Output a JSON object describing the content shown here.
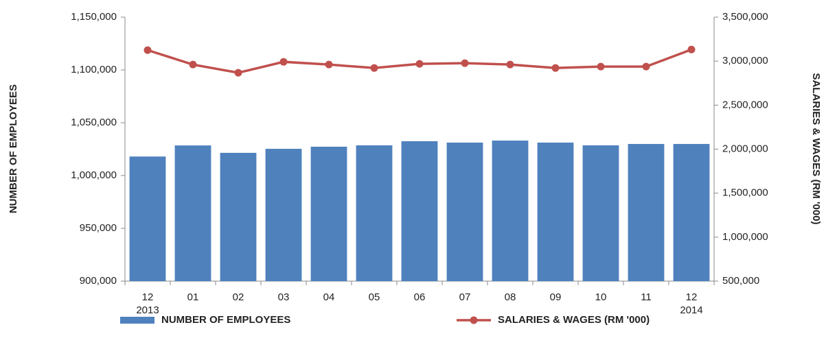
{
  "chart_data": {
    "type": "bar-line",
    "y_label": "NUMBER OF EMPLOYEES",
    "y2_label": "SALARIES & WAGES (RM  '000)",
    "categories": [
      "12\n2013",
      "01",
      "02",
      "03",
      "04",
      "05",
      "06",
      "07",
      "08",
      "09",
      "10",
      "11",
      "12\n2014"
    ],
    "series": [
      {
        "name": "NUMBER OF EMPLOYEES",
        "type": "bar",
        "color": "#4f81bd",
        "axis": "y",
        "values": [
          1018000,
          1028500,
          1021500,
          1025300,
          1027300,
          1028600,
          1032500,
          1031200,
          1033100,
          1031200,
          1028600,
          1029900,
          1029900
        ]
      },
      {
        "name": "SALARIES & WAGES (RM '000)",
        "type": "line",
        "color": "#c0504d",
        "axis": "y2",
        "values": [
          3125000,
          2961000,
          2868000,
          2992000,
          2961000,
          2922000,
          2969000,
          2977000,
          2961000,
          2922000,
          2938000,
          2938000,
          3132000
        ]
      }
    ],
    "ylim": [
      900000,
      1150000
    ],
    "yticks": [
      {
        "value": 900000,
        "label": "900,000"
      },
      {
        "value": 950000,
        "label": "950,000"
      },
      {
        "value": 1000000,
        "label": "1,000,000"
      },
      {
        "value": 1050000,
        "label": "1,050,000"
      },
      {
        "value": 1100000,
        "label": "1,100,000"
      },
      {
        "value": 1150000,
        "label": "1,150,000"
      }
    ],
    "y2lim": [
      500000,
      3500000
    ],
    "y2ticks": [
      {
        "value": 500000,
        "label": "500,000"
      },
      {
        "value": 1000000,
        "label": "1,000,000"
      },
      {
        "value": 1500000,
        "label": "1,500,000"
      },
      {
        "value": 2000000,
        "label": "2,000,000"
      },
      {
        "value": 2500000,
        "label": "2,500,000"
      },
      {
        "value": 3000000,
        "label": "3,000,000"
      },
      {
        "value": 3500000,
        "label": "3,500,000"
      }
    ],
    "legend": "bottom"
  }
}
